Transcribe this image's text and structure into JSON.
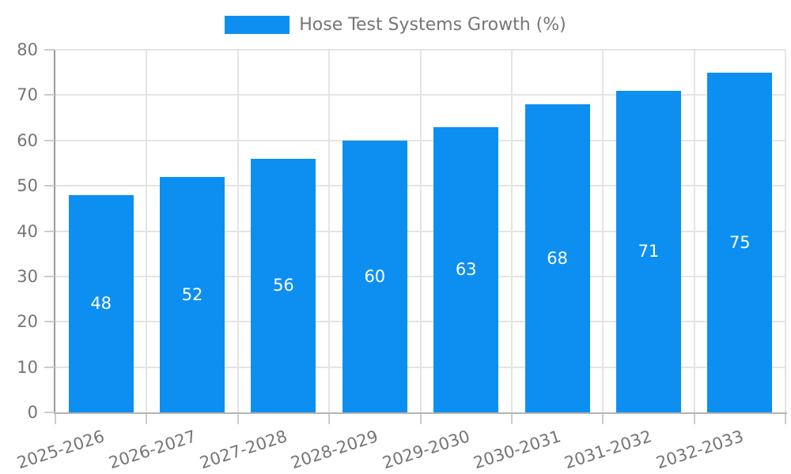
{
  "legend": {
    "label": "Hose Test Systems Growth (%)"
  },
  "colors": {
    "bar": "#0d8ff2",
    "grid": "#e4e4e4",
    "y_axis_line": "#9a9a9a",
    "x_axis_line": "#b3b3b3",
    "tick": "#cccccc",
    "axis_text": "#757575",
    "value_text": "#ffffff"
  },
  "chart_data": {
    "type": "bar",
    "title": "Hose Test Systems Growth (%)",
    "categories": [
      "2025-2026",
      "2026-2027",
      "2027-2028",
      "2028-2029",
      "2029-2030",
      "2030-2031",
      "2031-2032",
      "2032-2033"
    ],
    "values": [
      48,
      52,
      56,
      60,
      63,
      68,
      71,
      75
    ],
    "bar_labels": [
      48,
      52,
      56,
      60,
      63,
      68,
      71,
      75
    ],
    "xlabel": "",
    "ylabel": "",
    "ylim": [
      0,
      80
    ],
    "yticks": [
      0,
      10,
      20,
      30,
      40,
      50,
      60,
      70,
      80
    ],
    "grid": true,
    "legend_position": "top-center",
    "bar_label_position": "center-inside",
    "x_label_rotation_deg": -18
  }
}
